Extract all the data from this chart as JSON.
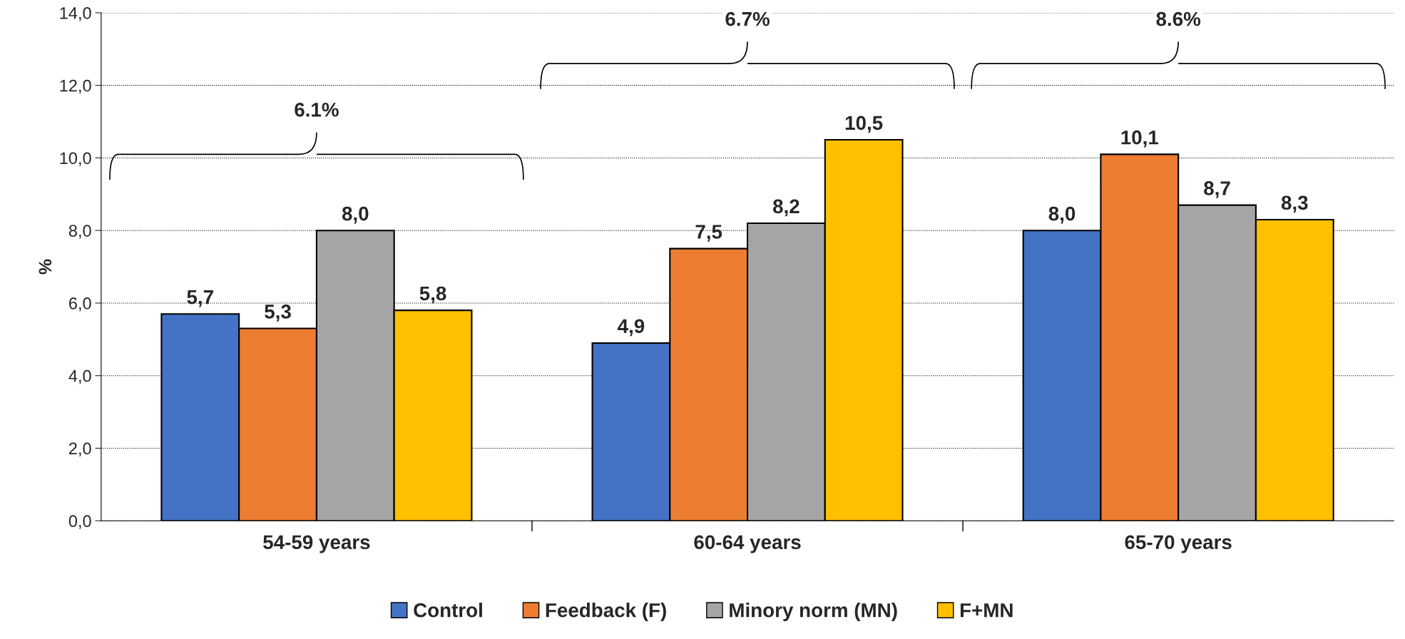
{
  "chart_data": {
    "type": "bar",
    "ylabel": "%",
    "categories": [
      "54-59 years",
      "60-64 years",
      "65-70 years"
    ],
    "series": [
      {
        "name": "Control",
        "color": "#4472c4",
        "values": [
          5.7,
          4.9,
          8.0
        ],
        "value_labels": [
          "5,7",
          "4,9",
          "8,0"
        ]
      },
      {
        "name": "Feedback (F)",
        "color": "#ed7d31",
        "values": [
          5.3,
          7.5,
          10.1
        ],
        "value_labels": [
          "5,3",
          "7,5",
          "10,1"
        ]
      },
      {
        "name": "Minory norm (MN)",
        "color": "#a5a5a5",
        "values": [
          8.0,
          8.2,
          8.7
        ],
        "value_labels": [
          "8,0",
          "8,2",
          "8,7"
        ]
      },
      {
        "name": "F+MN",
        "color": "#ffc000",
        "values": [
          5.8,
          10.5,
          8.3
        ],
        "value_labels": [
          "5,8",
          "10,5",
          "8,3"
        ]
      }
    ],
    "ylim": [
      0,
      14
    ],
    "yticks": [
      {
        "value": 0,
        "label": "0,0"
      },
      {
        "value": 2,
        "label": "2,0"
      },
      {
        "value": 4,
        "label": "4,0"
      },
      {
        "value": 6,
        "label": "6,0"
      },
      {
        "value": 8,
        "label": "8,0"
      },
      {
        "value": 10,
        "label": "10,0"
      },
      {
        "value": 12,
        "label": "12,0"
      },
      {
        "value": 14,
        "label": "14,0"
      }
    ],
    "grid": "y",
    "legend": "bottom",
    "annotations": [
      "6.1%",
      "6.7%",
      "8.6%"
    ]
  }
}
